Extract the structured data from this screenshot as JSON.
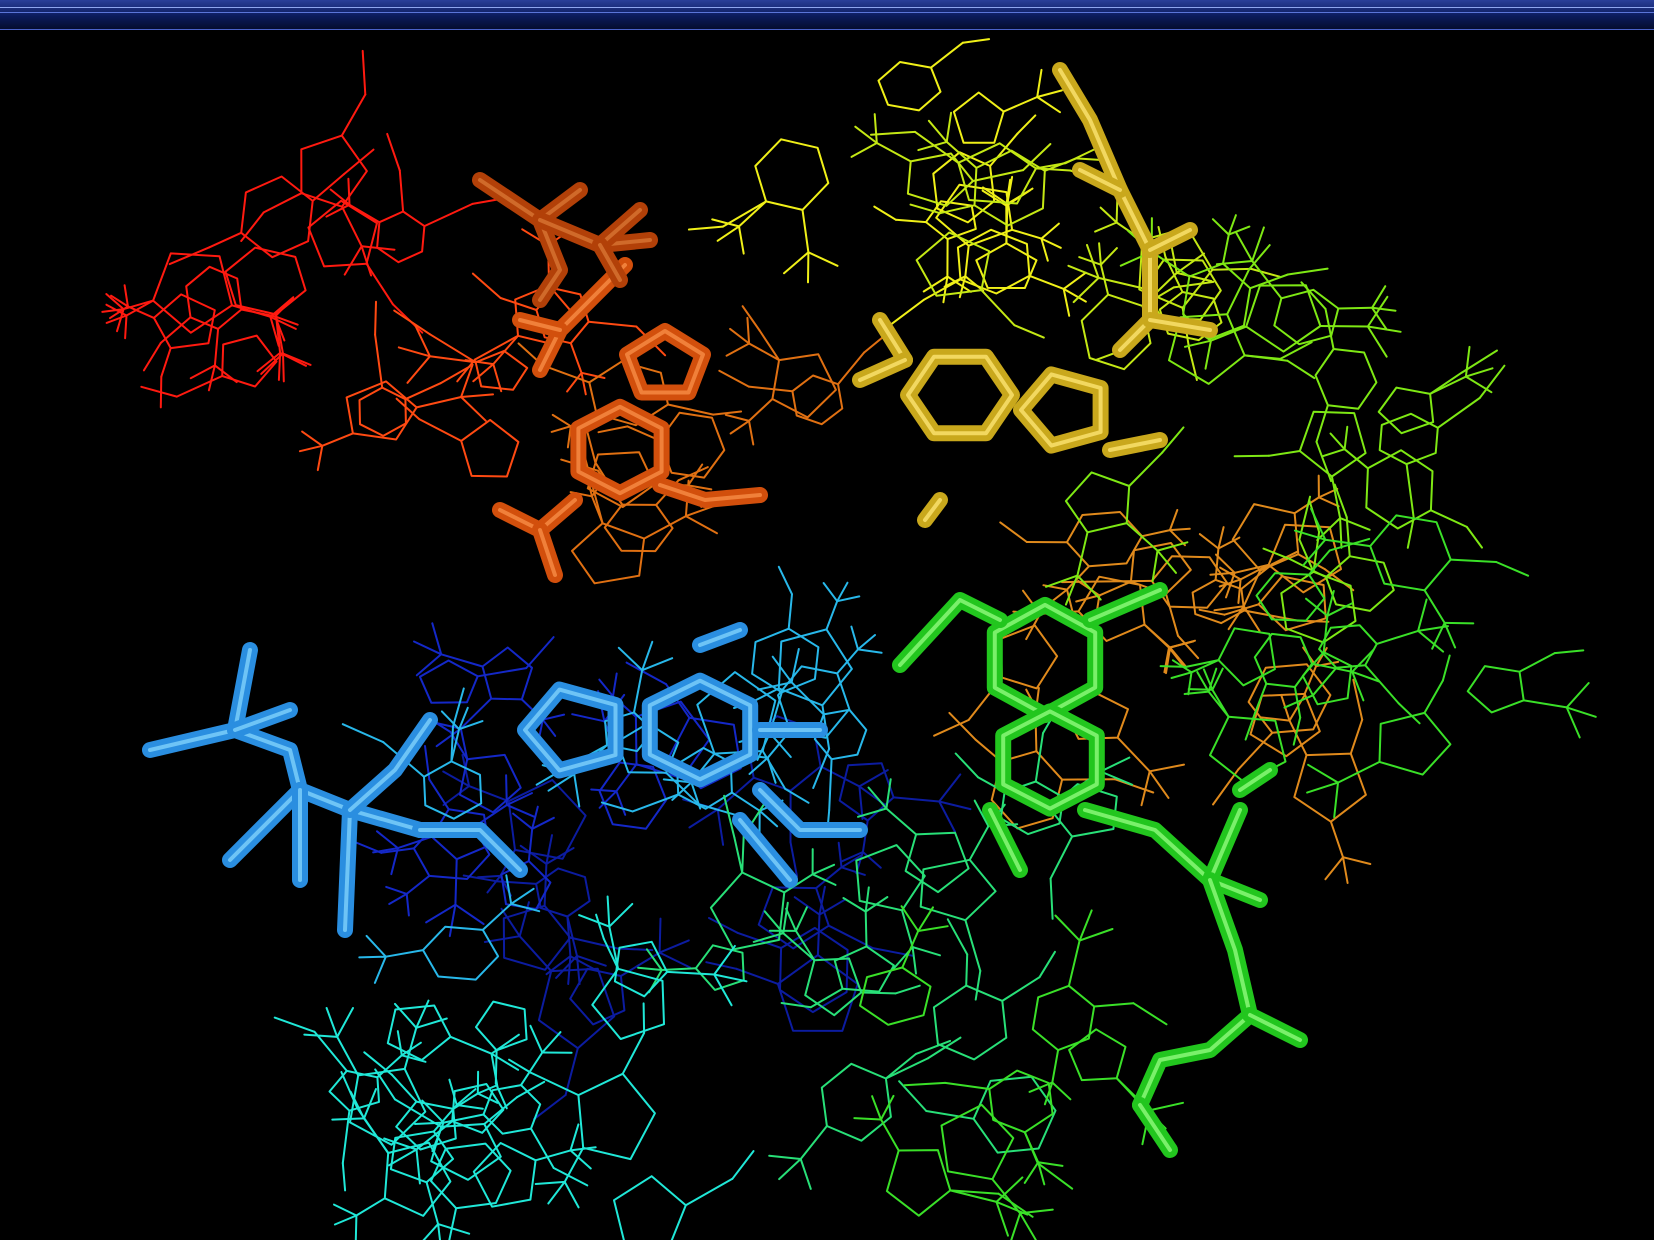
{
  "viewer": {
    "background_color": "#000000",
    "title_bar_color": "#0b1b5c",
    "title_bar_highlight": "#4a62c8"
  },
  "molecule": {
    "representation": "wire-and-stick",
    "coloring": "rainbow",
    "colors": {
      "red": "#ff1a10",
      "orange_red": "#ff4a12",
      "dark_orange_stick": "#b24008",
      "orange_stick": "#d24f0c",
      "amber": "#e08a1c",
      "orange_wire": "#e07012",
      "yellow": "#f0f018",
      "yellow_green": "#c4e814",
      "gold_stick": "#c9a81c",
      "light_green": "#7ee814",
      "green": "#3ae028",
      "green_stick": "#22c61e",
      "spring_green": "#28e078",
      "cyan": "#20e8d8",
      "sky_blue": "#28b8ea",
      "blue_stick": "#2a8ee0",
      "blue": "#1428c8",
      "dark_blue": "#0c1ca0"
    }
  }
}
